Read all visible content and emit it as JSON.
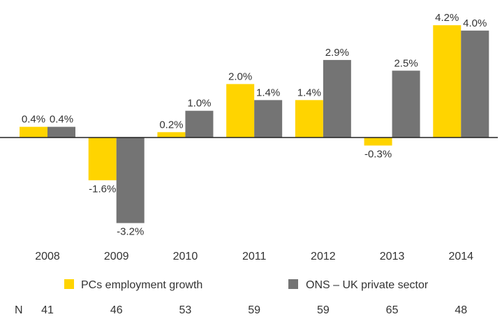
{
  "chart_data": {
    "type": "bar",
    "categories": [
      "2008",
      "2009",
      "2010",
      "2011",
      "2012",
      "2013",
      "2014"
    ],
    "series": [
      {
        "name": "PCs employment growth",
        "color": "#FFD400",
        "values": [
          0.4,
          -1.6,
          0.2,
          2.0,
          1.4,
          -0.3,
          4.2
        ],
        "labels": [
          "0.4%",
          "-1.6%",
          "0.2%",
          "2.0%",
          "1.4%",
          "-0.3%",
          "4.2%"
        ]
      },
      {
        "name": "ONS – UK private sector",
        "color": "#747474",
        "values": [
          0.4,
          -3.2,
          1.0,
          1.4,
          2.9,
          2.5,
          4.0
        ],
        "labels": [
          "0.4%",
          "-3.2%",
          "1.0%",
          "1.4%",
          "2.9%",
          "2.5%",
          "4.0%"
        ]
      }
    ],
    "ylim": [
      -3.4,
      4.4
    ],
    "grid": false,
    "legend_position": "bottom",
    "n_row": {
      "label": "N",
      "values": [
        "41",
        "46",
        "53",
        "59",
        "59",
        "65",
        "48"
      ]
    }
  }
}
